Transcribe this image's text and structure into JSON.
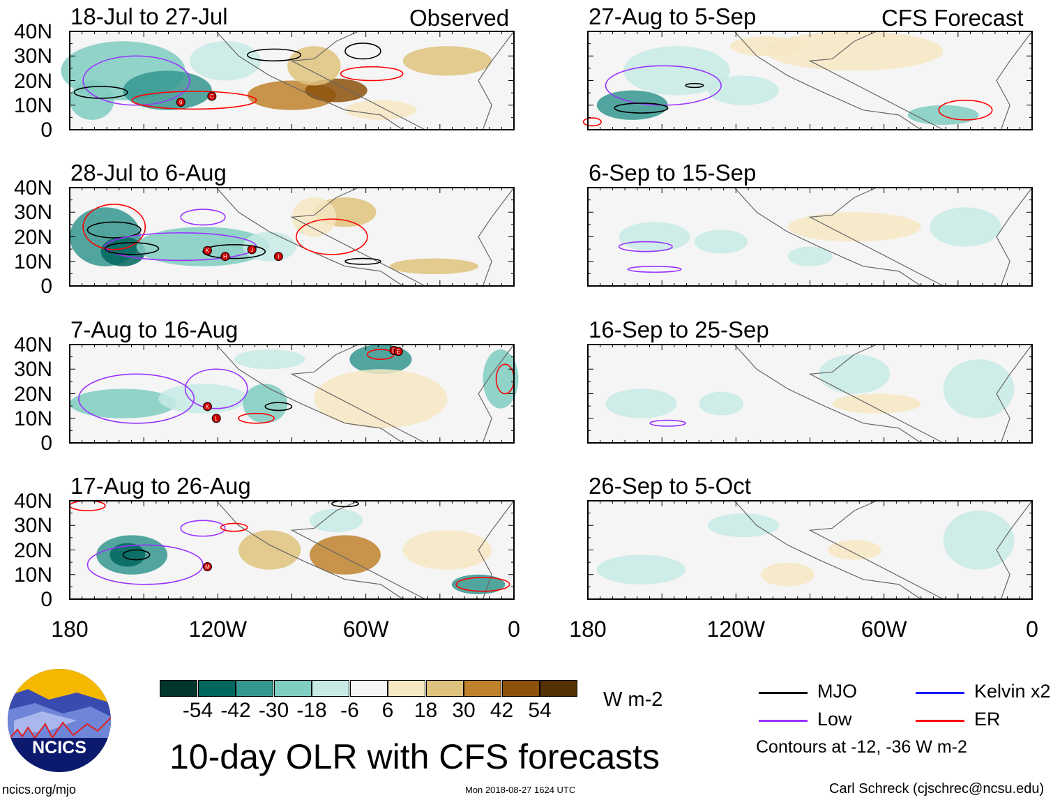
{
  "headers": {
    "observed": "Observed",
    "forecast": "CFS Forecast"
  },
  "panels": [
    {
      "title": "18-Jul to 27-Jul",
      "storms": [
        "9",
        "C"
      ]
    },
    {
      "title": "28-Jul to 6-Aug",
      "storms": [
        "K",
        "H",
        "J",
        "I"
      ]
    },
    {
      "title": "7-Aug to 16-Aug",
      "storms": [
        "K",
        "L",
        "D",
        "E"
      ]
    },
    {
      "title": "17-Aug to 26-Aug",
      "storms": [
        "M"
      ]
    },
    {
      "title": "27-Aug to 5-Sep",
      "storms": []
    },
    {
      "title": "6-Sep to 15-Sep",
      "storms": []
    },
    {
      "title": "16-Sep to 25-Sep",
      "storms": []
    },
    {
      "title": "26-Sep to 5-Oct",
      "storms": []
    }
  ],
  "y_ticks": [
    "40N",
    "30N",
    "20N",
    "10N",
    "0"
  ],
  "x_ticks": [
    "180",
    "120W",
    "60W",
    "0"
  ],
  "colorbar": {
    "colors": [
      "#00362d",
      "#01665e",
      "#35978f",
      "#80cdc1",
      "#c7eae5",
      "#f5f5f5",
      "#f6e8c3",
      "#dfc27d",
      "#bf812d",
      "#8c510a",
      "#543005"
    ],
    "labels": [
      "-54",
      "-42",
      "-30",
      "-18",
      "-6",
      "6",
      "18",
      "30",
      "42",
      "54"
    ],
    "units": "W m-2"
  },
  "legend": {
    "items": [
      {
        "label": "MJO",
        "color": "#000000"
      },
      {
        "label": "Kelvin x2",
        "color": "#1a1aff"
      },
      {
        "label": "Low",
        "color": "#9933ff"
      },
      {
        "label": "ER",
        "color": "#ff0000"
      }
    ],
    "note": "Contours at -12, -36 W m-2"
  },
  "title": "10-day OLR with CFS forecasts",
  "logo_text": "NCICS",
  "footer": {
    "url": "ncics.org/mjo",
    "timestamp": "Mon 2018-08-27 1624 UTC",
    "author": "Carl Schreck (cjschrec@ncsu.edu)"
  }
}
